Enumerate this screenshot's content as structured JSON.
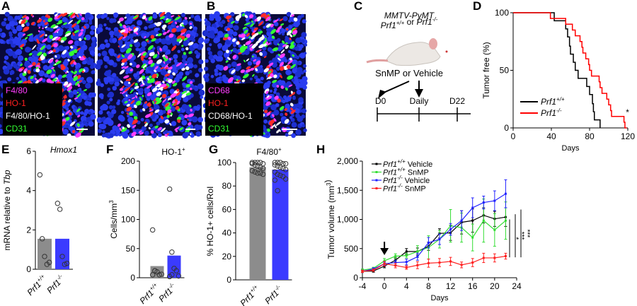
{
  "panel_labels": {
    "A": "A",
    "B": "B",
    "C": "C",
    "D": "D",
    "E": "E",
    "F": "F",
    "G": "G",
    "H": "H"
  },
  "panel_A": {
    "legend": [
      {
        "text": "F4/80",
        "color": "#ff3cff"
      },
      {
        "text": "HO-1",
        "color": "#ff2020"
      },
      {
        "text": "F4/80/HO-1",
        "color": "#ffffff"
      },
      {
        "text": "CD31",
        "color": "#33ff33"
      }
    ]
  },
  "panel_B": {
    "legend": [
      {
        "text": "CD68",
        "color": "#ff3cff"
      },
      {
        "text": "HO-1",
        "color": "#ff2020"
      },
      {
        "text": "CD68/HO-1",
        "color": "#ffffff"
      },
      {
        "text": "CD31",
        "color": "#33ff33"
      }
    ]
  },
  "panel_C": {
    "line1": "MMTV-PyMT",
    "line2": "Prf1+/+ or Prf1-/-",
    "treatment": "SnMP or Vehicle",
    "timepoints": [
      "D0",
      "Daily",
      "D22"
    ]
  },
  "chart_data": [
    {
      "panel": "D",
      "type": "line",
      "step": true,
      "ylabel": "Tumor free (%)",
      "xlabel": "Days",
      "xlim": [
        0,
        120
      ],
      "ylim": [
        0,
        100
      ],
      "xticks": [
        0,
        40,
        80,
        120
      ],
      "yticks": [
        0,
        50,
        100
      ],
      "annotation": "*",
      "legend_position": "bottom-left",
      "series": [
        {
          "name": "Prf1+/+",
          "color": "#000000",
          "x": [
            0,
            43,
            55,
            57,
            59,
            60,
            63,
            65,
            68,
            77,
            80,
            83,
            84,
            85,
            86,
            91
          ],
          "y": [
            100,
            93,
            86,
            79,
            71,
            64,
            57,
            50,
            43,
            36,
            29,
            21,
            14,
            7,
            7,
            0
          ]
        },
        {
          "name": "Prf1-/-",
          "color": "#ff0000",
          "x": [
            0,
            39,
            55,
            62,
            65,
            70,
            72,
            73,
            76,
            79,
            80,
            82,
            90,
            91,
            93,
            98,
            100,
            102,
            103,
            116,
            117,
            119
          ],
          "y": [
            100,
            95,
            90,
            85,
            80,
            75,
            70,
            65,
            60,
            55,
            50,
            45,
            40,
            35,
            30,
            25,
            20,
            15,
            10,
            5,
            0,
            0
          ]
        }
      ]
    },
    {
      "panel": "E",
      "type": "bar",
      "title": "Hmox1",
      "ylabel": "mRNA relative to Tbp",
      "ylim": [
        0,
        6
      ],
      "yticks": [
        0,
        2,
        4,
        6
      ],
      "categories": [
        "Prf1+/+",
        "Prf1-/-"
      ],
      "values": [
        1.55,
        1.55
      ],
      "colors": [
        "#8c8c8c",
        "#3b3bff"
      ],
      "points": [
        [
          4.8,
          1.55,
          0.65,
          0.25,
          0.35
        ],
        [
          3.35,
          3.05,
          0.65,
          0.25,
          0.3
        ]
      ]
    },
    {
      "panel": "F",
      "type": "bar",
      "title": "HO-1+",
      "ylabel": "Cells/mm3",
      "ylim": [
        0,
        200
      ],
      "yticks": [
        0,
        50,
        100,
        150,
        200
      ],
      "categories": [
        "Prf1+/+",
        "Prf1-/-"
      ],
      "values": [
        20,
        38
      ],
      "colors": [
        "#8c8c8c",
        "#3b3bff"
      ],
      "points": [
        [
          82,
          12,
          10,
          5,
          6,
          5,
          12
        ],
        [
          152,
          44,
          16,
          12,
          3,
          2,
          5
        ]
      ]
    },
    {
      "panel": "G",
      "type": "bar",
      "title": "F4/80+",
      "ylabel": "% HO-1+ cells/RoI",
      "ylim": [
        0,
        100
      ],
      "yticks": [
        0,
        20,
        40,
        60,
        80,
        100
      ],
      "categories": [
        "Prf1+/+",
        "Prf1-/-"
      ],
      "values": [
        96,
        94
      ],
      "colors": [
        "#8c8c8c",
        "#3b3bff"
      ],
      "points": [
        [
          100,
          100,
          100,
          100,
          99,
          99,
          98,
          97,
          96,
          95,
          93,
          92,
          91,
          91,
          90
        ],
        [
          100,
          100,
          100,
          99,
          99,
          98,
          97,
          96,
          95,
          94,
          92,
          90,
          89,
          88,
          86,
          85,
          76
        ]
      ]
    },
    {
      "panel": "H",
      "type": "line",
      "ylabel": "Tumor volume (mm3)",
      "xlabel": "Days",
      "xlim": [
        -4,
        24
      ],
      "ylim": [
        0,
        2000
      ],
      "xticks": [
        -4,
        0,
        4,
        8,
        12,
        16,
        20,
        24
      ],
      "yticks": [
        0,
        500,
        1000,
        1500,
        2000
      ],
      "ytick_labels": [
        "0",
        "500",
        "1,000",
        "1,500",
        "2,000"
      ],
      "legend_position": "top-left",
      "treatment_arrow_day": 0,
      "x": [
        -4,
        -2,
        0,
        2,
        4,
        6,
        8,
        10,
        12,
        14,
        16,
        18,
        20,
        22
      ],
      "series": [
        {
          "name": "Prf1+/+ Vehicle",
          "color": "#000000",
          "values": [
            110,
            115,
            200,
            300,
            450,
            450,
            540,
            760,
            770,
            950,
            980,
            1070,
            1010,
            1040
          ],
          "errors": [
            20,
            20,
            30,
            40,
            50,
            60,
            70,
            80,
            130,
            200,
            200,
            130,
            130,
            160
          ]
        },
        {
          "name": "Prf1+/+ SnMP",
          "color": "#33dd33",
          "values": [
            130,
            160,
            290,
            370,
            380,
            450,
            520,
            660,
            890,
            860,
            690,
            980,
            820,
            980
          ],
          "errors": [
            20,
            20,
            40,
            40,
            40,
            100,
            200,
            150,
            280,
            250,
            230,
            370,
            280,
            320
          ]
        },
        {
          "name": "Prf1-/- Vehicle",
          "color": "#2222ff",
          "values": [
            110,
            150,
            240,
            260,
            270,
            360,
            600,
            660,
            830,
            980,
            1200,
            1290,
            1320,
            1440
          ],
          "errors": [
            20,
            20,
            30,
            40,
            50,
            60,
            90,
            90,
            100,
            170,
            170,
            110,
            170,
            240
          ]
        },
        {
          "name": "Prf1-/- SnMP",
          "color": "#ff2020",
          "values": [
            110,
            130,
            240,
            210,
            175,
            215,
            250,
            260,
            280,
            220,
            260,
            340,
            340,
            370
          ],
          "errors": [
            20,
            20,
            40,
            40,
            30,
            60,
            70,
            70,
            70,
            50,
            70,
            80,
            70,
            50
          ]
        }
      ],
      "significance": [
        "*",
        "***",
        "***"
      ]
    }
  ]
}
